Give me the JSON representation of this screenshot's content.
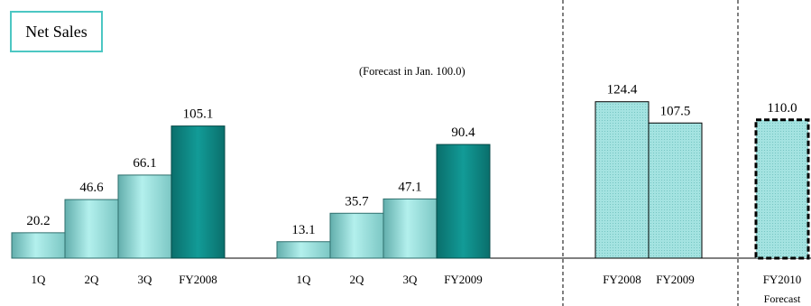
{
  "chart_data": {
    "type": "bar",
    "title": "Net Sales",
    "annotation": "(Forecast in Jan. 100.0)",
    "ylim": [
      0,
      130
    ],
    "grid": false,
    "groups": [
      {
        "categories": [
          "1Q",
          "2Q",
          "3Q",
          "FY2008"
        ],
        "values": [
          20.2,
          46.6,
          66.1,
          105.1
        ],
        "labels": [
          "20.2",
          "46.6",
          "66.1",
          "105.1"
        ],
        "style": [
          "gradient",
          "gradient",
          "gradient",
          "teal"
        ]
      },
      {
        "categories": [
          "1Q",
          "2Q",
          "3Q",
          "FY2009"
        ],
        "values": [
          13.1,
          35.7,
          47.1,
          90.4
        ],
        "labels": [
          "13.1",
          "35.7",
          "47.1",
          "90.4"
        ],
        "style": [
          "gradient",
          "gradient",
          "gradient",
          "teal"
        ]
      },
      {
        "categories": [
          "FY2008",
          "FY2009"
        ],
        "values": [
          124.4,
          107.5
        ],
        "labels": [
          "124.4",
          "107.5"
        ],
        "style": [
          "dotted",
          "dotted"
        ]
      },
      {
        "categories": [
          "FY2010"
        ],
        "sublabel": "Forecast",
        "values": [
          110.0
        ],
        "labels": [
          "110.0"
        ],
        "style": [
          "forecast"
        ]
      }
    ]
  },
  "colors": {
    "title_border": "#4cc7c3",
    "teal_bar": "#0b7d7a",
    "gradient_light": "#a9ece9",
    "gradient_dark": "#5fa8a6",
    "dotted_fill": "#9fe0de"
  }
}
